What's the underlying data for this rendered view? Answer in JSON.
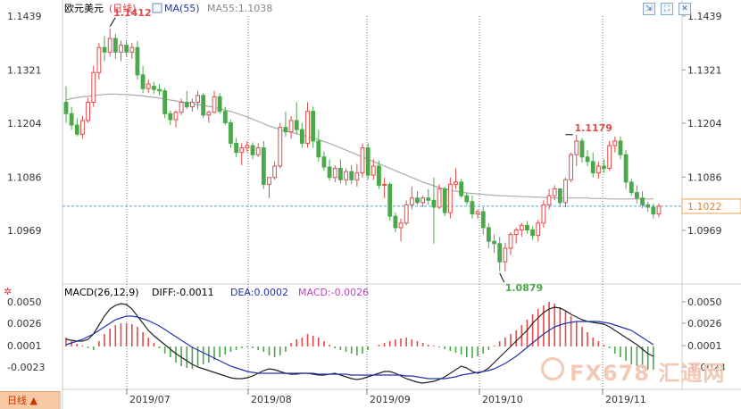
{
  "header": {
    "title": "欧元美元",
    "period": "(日线)",
    "ma_toggle": "MA(55)",
    "ma_value": "MA55:1.1038"
  },
  "indicator": {
    "label": "MACD(26,12,9)",
    "diff": "DIFF:-0.0011",
    "dea": "DEA:0.0002",
    "macd": "MACD:-0.0026"
  },
  "period_button": "日线 ▲",
  "watermark": "FX678 汇通网",
  "colors": {
    "up": "#e24b4b",
    "down": "#4aa84a",
    "ma": "#aaaaaa",
    "dif": "#222222",
    "dea": "#2233aa",
    "current": "#f0a050"
  },
  "chart_data": {
    "type": "candlestick",
    "price_axis": {
      "ticks": [
        "1.1439",
        "1.1321",
        "1.1204",
        "1.1086",
        "1.0969"
      ],
      "range": [
        1.0875,
        1.1445
      ]
    },
    "macd_axis": {
      "ticks": [
        "0.0050",
        "0.0026",
        "0.0001",
        "-0.0023"
      ],
      "range": [
        -0.004,
        0.0058
      ]
    },
    "date_labels": [
      "2019/07",
      "2019/08",
      "2019/09",
      "2019/10",
      "2019/11"
    ],
    "annotations": {
      "high": "1.1412",
      "local_high": "1.1179",
      "low": "1.0879",
      "current": "1.1022"
    },
    "current_price": 1.1022,
    "candles": [
      [
        1.125,
        1.1285,
        1.1205,
        1.1225
      ],
      [
        1.1225,
        1.124,
        1.119,
        1.12
      ],
      [
        1.12,
        1.1215,
        1.1175,
        1.118
      ],
      [
        1.118,
        1.122,
        1.117,
        1.121
      ],
      [
        1.121,
        1.126,
        1.1205,
        1.125
      ],
      [
        1.125,
        1.133,
        1.124,
        1.1315
      ],
      [
        1.1315,
        1.138,
        1.13,
        1.137
      ],
      [
        1.137,
        1.1395,
        1.134,
        1.136
      ],
      [
        1.136,
        1.1412,
        1.135,
        1.139
      ],
      [
        1.139,
        1.14,
        1.1345,
        1.136
      ],
      [
        1.136,
        1.1385,
        1.134,
        1.1375
      ],
      [
        1.1375,
        1.1385,
        1.135,
        1.136
      ],
      [
        1.136,
        1.138,
        1.1345,
        1.137
      ],
      [
        1.137,
        1.1385,
        1.13,
        1.131
      ],
      [
        1.131,
        1.133,
        1.127,
        1.128
      ],
      [
        1.128,
        1.13,
        1.127,
        1.129
      ],
      [
        1.1285,
        1.1295,
        1.1268,
        1.1278
      ],
      [
        1.1278,
        1.129,
        1.1265,
        1.1275
      ],
      [
        1.1275,
        1.1282,
        1.1215,
        1.1225
      ],
      [
        1.1225,
        1.1232,
        1.12,
        1.1212
      ],
      [
        1.1212,
        1.1232,
        1.1195,
        1.1228
      ],
      [
        1.1228,
        1.1258,
        1.1222,
        1.125
      ],
      [
        1.125,
        1.1275,
        1.1235,
        1.124
      ],
      [
        1.124,
        1.1258,
        1.123,
        1.125
      ],
      [
        1.125,
        1.1275,
        1.1235,
        1.1265
      ],
      [
        1.1265,
        1.127,
        1.1215,
        1.1222
      ],
      [
        1.1222,
        1.1232,
        1.1205,
        1.1228
      ],
      [
        1.1228,
        1.1275,
        1.1225,
        1.1262
      ],
      [
        1.1262,
        1.127,
        1.1225,
        1.123
      ],
      [
        1.123,
        1.124,
        1.12,
        1.1205
      ],
      [
        1.1205,
        1.1212,
        1.115,
        1.116
      ],
      [
        1.116,
        1.1172,
        1.113,
        1.114
      ],
      [
        1.114,
        1.116,
        1.1112,
        1.115
      ],
      [
        1.115,
        1.1165,
        1.114,
        1.1155
      ],
      [
        1.1155,
        1.1162,
        1.1125,
        1.1135
      ],
      [
        1.1135,
        1.116,
        1.113,
        1.115
      ],
      [
        1.115,
        1.1165,
        1.106,
        1.107
      ],
      [
        1.107,
        1.1085,
        1.104,
        1.1085
      ],
      [
        1.1085,
        1.112,
        1.108,
        1.111
      ],
      [
        1.111,
        1.1205,
        1.1105,
        1.1195
      ],
      [
        1.1195,
        1.123,
        1.1175,
        1.1185
      ],
      [
        1.1185,
        1.122,
        1.117,
        1.121
      ],
      [
        1.121,
        1.125,
        1.118,
        1.119
      ],
      [
        1.119,
        1.1205,
        1.115,
        1.116
      ],
      [
        1.116,
        1.125,
        1.115,
        1.123
      ],
      [
        1.123,
        1.124,
        1.115,
        1.1165
      ],
      [
        1.1165,
        1.119,
        1.112,
        1.113
      ],
      [
        1.113,
        1.1142,
        1.11,
        1.1108
      ],
      [
        1.1108,
        1.1125,
        1.1078,
        1.1085
      ],
      [
        1.1085,
        1.1112,
        1.1075,
        1.1105
      ],
      [
        1.1105,
        1.1125,
        1.1072,
        1.108
      ],
      [
        1.108,
        1.1105,
        1.1068,
        1.1098
      ],
      [
        1.1098,
        1.1112,
        1.107,
        1.108
      ],
      [
        1.108,
        1.1115,
        1.1065,
        1.1095
      ],
      [
        1.1095,
        1.116,
        1.1085,
        1.115
      ],
      [
        1.115,
        1.116,
        1.108,
        1.109
      ],
      [
        1.109,
        1.1125,
        1.108,
        1.111
      ],
      [
        1.111,
        1.1122,
        1.106,
        1.1068
      ],
      [
        1.1068,
        1.1085,
        1.104,
        1.107
      ],
      [
        1.107,
        1.1075,
        1.099,
        1.1
      ],
      [
        1.1,
        1.1008,
        1.0965,
        1.0975
      ],
      [
        1.0975,
        1.0995,
        1.0945,
        1.0985
      ],
      [
        1.0985,
        1.1035,
        1.098,
        1.1025
      ],
      [
        1.1025,
        1.1065,
        1.1015,
        1.104
      ],
      [
        1.104,
        1.1055,
        1.1025,
        1.103
      ],
      [
        1.103,
        1.1045,
        1.102,
        1.104
      ],
      [
        1.104,
        1.106,
        1.1025,
        1.1035
      ],
      [
        1.1035,
        1.1085,
        1.094,
        1.102
      ],
      [
        1.102,
        1.107,
        1.1015,
        1.106
      ],
      [
        1.106,
        1.1065,
        1.1,
        1.1008
      ],
      [
        1.1008,
        1.1085,
        1.0995,
        1.107
      ],
      [
        1.107,
        1.1105,
        1.106,
        1.1075
      ],
      [
        1.1075,
        1.1082,
        1.104,
        1.1045
      ],
      [
        1.1045,
        1.1052,
        1.1025,
        1.1032
      ],
      [
        1.1032,
        1.1045,
        1.0995,
        1.1005
      ],
      [
        1.1005,
        1.1015,
        1.0995,
        1.101
      ],
      [
        1.101,
        1.102,
        1.096,
        1.0975
      ],
      [
        1.0975,
        1.0985,
        1.093,
        1.0945
      ],
      [
        1.0945,
        1.096,
        1.092,
        1.094
      ],
      [
        1.094,
        1.0955,
        1.088,
        1.09
      ],
      [
        1.09,
        1.0942,
        1.0879,
        1.093
      ],
      [
        1.093,
        1.0965,
        1.0915,
        1.096
      ],
      [
        1.096,
        1.0975,
        1.094,
        1.097
      ],
      [
        1.097,
        1.0985,
        1.0955,
        1.098
      ],
      [
        1.098,
        1.099,
        1.0962,
        1.097
      ],
      [
        1.097,
        1.0978,
        1.0948,
        1.0958
      ],
      [
        1.0958,
        1.0992,
        1.0945,
        1.0985
      ],
      [
        1.0985,
        1.1035,
        1.0975,
        1.1025
      ],
      [
        1.1025,
        1.106,
        1.1015,
        1.1045
      ],
      [
        1.1045,
        1.1068,
        1.1035,
        1.106
      ],
      [
        1.106,
        1.1062,
        1.102,
        1.103
      ],
      [
        1.103,
        1.1085,
        1.102,
        1.108
      ],
      [
        1.108,
        1.114,
        1.1075,
        1.1135
      ],
      [
        1.1135,
        1.1179,
        1.111,
        1.1165
      ],
      [
        1.1165,
        1.1172,
        1.1118,
        1.113
      ],
      [
        1.113,
        1.1145,
        1.111,
        1.112
      ],
      [
        1.112,
        1.114,
        1.1085,
        1.1095
      ],
      [
        1.1095,
        1.112,
        1.1082,
        1.111
      ],
      [
        1.111,
        1.1125,
        1.1095,
        1.1105
      ],
      [
        1.1105,
        1.1165,
        1.11,
        1.1155
      ],
      [
        1.1155,
        1.1175,
        1.114,
        1.1165
      ],
      [
        1.1165,
        1.1175,
        1.1125,
        1.1135
      ],
      [
        1.1135,
        1.1145,
        1.106,
        1.1075
      ],
      [
        1.1075,
        1.1082,
        1.1045,
        1.1052
      ],
      [
        1.1052,
        1.1068,
        1.1028,
        1.104
      ],
      [
        1.104,
        1.1055,
        1.1018,
        1.1025
      ],
      [
        1.1025,
        1.1032,
        1.101,
        1.102
      ],
      [
        1.102,
        1.1028,
        1.0995,
        1.1005
      ],
      [
        1.1005,
        1.1028,
        1.0998,
        1.1022
      ]
    ],
    "ma55": [
      1.1255,
      1.1258,
      1.126,
      1.1262,
      1.1263,
      1.1265,
      1.1266,
      1.1267,
      1.1268,
      1.1268,
      1.1267,
      1.1267,
      1.1266,
      1.1265,
      1.1264,
      1.1262,
      1.1261,
      1.1259,
      1.1257,
      1.1255,
      1.1253,
      1.1251,
      1.1249,
      1.1247,
      1.1245,
      1.1243,
      1.1241,
      1.1239,
      1.1236,
      1.1233,
      1.123,
      1.1226,
      1.1222,
      1.1218,
      1.1213,
      1.1208,
      1.1203,
      1.1198,
      1.1194,
      1.119,
      1.1187,
      1.1184,
      1.1181,
      1.1178,
      1.1175,
      1.1172,
      1.1168,
      1.1164,
      1.116,
      1.1155,
      1.115,
      1.1145,
      1.114,
      1.1135,
      1.113,
      1.1125,
      1.112,
      1.1115,
      1.111,
      1.1105,
      1.11,
      1.1095,
      1.109,
      1.1085,
      1.108,
      1.1075,
      1.1071,
      1.1067,
      1.1063,
      1.106,
      1.1057,
      1.1055,
      1.1053,
      1.1051,
      1.105,
      1.1049,
      1.1048,
      1.1047,
      1.1046,
      1.1045,
      1.1045,
      1.1044,
      1.1044,
      1.1043,
      1.1043,
      1.1042,
      1.1042,
      1.1041,
      1.1041,
      1.104,
      1.104,
      1.104,
      1.104,
      1.104,
      1.104,
      1.104,
      1.1039,
      1.1039,
      1.1039,
      1.1038,
      1.1038,
      1.1038,
      1.1038,
      1.1038,
      1.1038,
      1.1038,
      1.1038,
      1.1038
    ],
    "macd_hist": [
      0.001,
      0.0006,
      0.0003,
      0.0001,
      -0.0002,
      -0.0004,
      0.0006,
      0.0014,
      0.002,
      0.0024,
      0.0026,
      0.0026,
      0.0025,
      0.0022,
      0.0016,
      0.001,
      0.0004,
      -0.0002,
      -0.0008,
      -0.0012,
      -0.0018,
      -0.0022,
      -0.0024,
      -0.0025,
      -0.0022,
      -0.002,
      -0.0018,
      -0.0015,
      -0.0012,
      -0.0009,
      -0.0006,
      -0.0004,
      -0.0002,
      -0.0001,
      -0.0002,
      -0.0004,
      -0.0006,
      -0.001,
      -0.0012,
      -0.001,
      -0.0006,
      0.0004,
      0.0008,
      0.001,
      0.0014,
      0.0012,
      0.001,
      0.0006,
      0.0002,
      -0.0002,
      -0.0004,
      -0.0006,
      -0.0008,
      -0.001,
      -0.0008,
      -0.0004,
      0.0,
      0.0002,
      0.0004,
      0.0006,
      0.0008,
      0.0009,
      0.001,
      0.0008,
      0.0006,
      0.0004,
      0.0002,
      0.0001,
      -0.0001,
      -0.0003,
      -0.0005,
      -0.0007,
      -0.0009,
      -0.0012,
      -0.0013,
      -0.0011,
      -0.0008,
      -0.0004,
      0.0001,
      0.0006,
      0.001,
      0.0014,
      0.0018,
      0.0024,
      0.003,
      0.0036,
      0.0042,
      0.0046,
      0.005,
      0.0048,
      0.0044,
      0.004,
      0.0034,
      0.0028,
      0.0022,
      0.0016,
      0.001,
      0.0006,
      0.0002,
      -0.0002,
      -0.0008,
      -0.0012,
      -0.0016,
      -0.002,
      -0.0022,
      -0.0024,
      -0.0026,
      -0.0026
    ],
    "dif": [
      0.0008,
      0.0007,
      0.0006,
      0.0006,
      0.0008,
      0.0014,
      0.0024,
      0.0034,
      0.0042,
      0.0046,
      0.0048,
      0.0047,
      0.0042,
      0.0034,
      0.0026,
      0.0018,
      0.0012,
      0.0007,
      0.0002,
      -0.0003,
      -0.0008,
      -0.0012,
      -0.0016,
      -0.002,
      -0.0023,
      -0.0025,
      -0.0027,
      -0.0029,
      -0.0031,
      -0.0033,
      -0.0035,
      -0.0036,
      -0.0036,
      -0.0035,
      -0.0033,
      -0.003,
      -0.0027,
      -0.0025,
      -0.0026,
      -0.0028,
      -0.003,
      -0.0031,
      -0.0031,
      -0.003,
      -0.003,
      -0.0031,
      -0.0032,
      -0.0032,
      -0.0031,
      -0.003,
      -0.0032,
      -0.0034,
      -0.0036,
      -0.0037,
      -0.0036,
      -0.0034,
      -0.0032,
      -0.003,
      -0.0028,
      -0.0028,
      -0.003,
      -0.0033,
      -0.0036,
      -0.0038,
      -0.004,
      -0.0041,
      -0.004,
      -0.0039,
      -0.0037,
      -0.0034,
      -0.003,
      -0.0026,
      -0.0022,
      -0.0024,
      -0.0028,
      -0.003,
      -0.0028,
      -0.0024,
      -0.0018,
      -0.0012,
      -0.0006,
      0.0,
      0.0006,
      0.0012,
      0.0018,
      0.0026,
      0.0032,
      0.0038,
      0.0042,
      0.0044,
      0.0043,
      0.004,
      0.0036,
      0.0033,
      0.003,
      0.0028,
      0.0027,
      0.0026,
      0.0025,
      0.0022,
      0.0018,
      0.0014,
      0.001,
      0.0006,
      0.0002,
      -0.0003,
      -0.0008,
      -0.0011
    ],
    "dea": [
      0.0002,
      0.0004,
      0.0006,
      0.0008,
      0.0011,
      0.0014,
      0.0018,
      0.0022,
      0.0026,
      0.003,
      0.0032,
      0.0034,
      0.0034,
      0.0033,
      0.0031,
      0.0029,
      0.0026,
      0.0023,
      0.0019,
      0.0015,
      0.0011,
      0.0007,
      0.0003,
      -0.0001,
      -0.0004,
      -0.0007,
      -0.001,
      -0.0013,
      -0.0016,
      -0.0019,
      -0.0022,
      -0.0024,
      -0.0026,
      -0.0028,
      -0.0029,
      -0.003,
      -0.003,
      -0.003,
      -0.003,
      -0.003,
      -0.003,
      -0.003,
      -0.003,
      -0.003,
      -0.003,
      -0.003,
      -0.0031,
      -0.0031,
      -0.0031,
      -0.0031,
      -0.0031,
      -0.0031,
      -0.0032,
      -0.0032,
      -0.0032,
      -0.0032,
      -0.0032,
      -0.0032,
      -0.0032,
      -0.0032,
      -0.0032,
      -0.0032,
      -0.0033,
      -0.0033,
      -0.0034,
      -0.0035,
      -0.0036,
      -0.0036,
      -0.0036,
      -0.0036,
      -0.0035,
      -0.0034,
      -0.0032,
      -0.0031,
      -0.003,
      -0.0029,
      -0.0028,
      -0.0027,
      -0.0025,
      -0.0022,
      -0.0019,
      -0.0015,
      -0.0011,
      -0.0006,
      -0.0001,
      0.0004,
      0.0009,
      0.0014,
      0.0018,
      0.0022,
      0.0024,
      0.0026,
      0.0027,
      0.0028,
      0.0028,
      0.0028,
      0.0028,
      0.0028,
      0.0027,
      0.0026,
      0.0024,
      0.0022,
      0.002,
      0.0018,
      0.0014,
      0.001,
      0.0006,
      0.0002
    ]
  }
}
